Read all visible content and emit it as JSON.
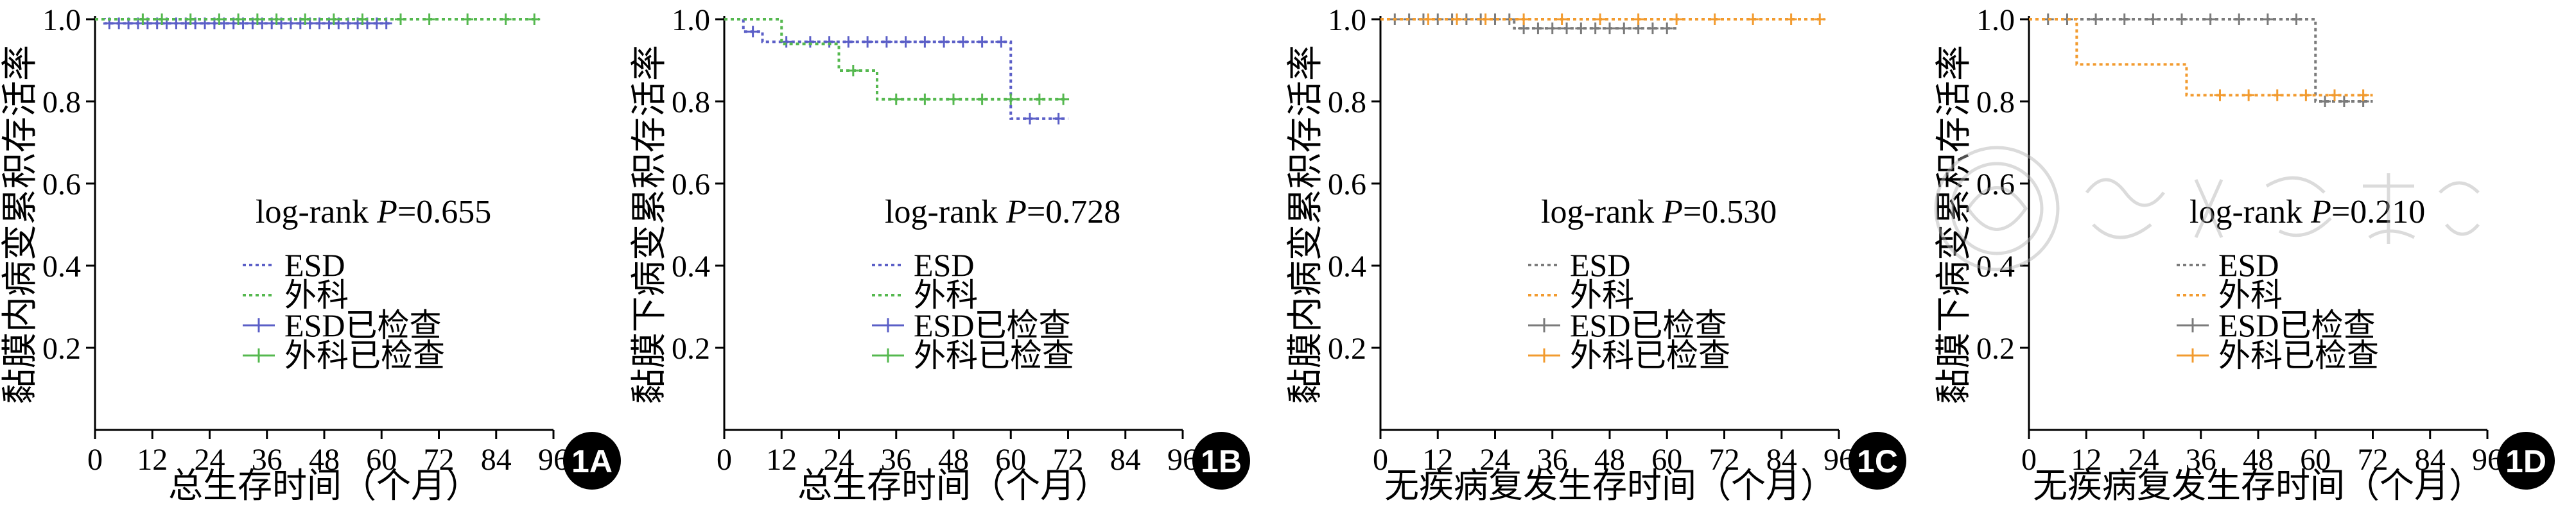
{
  "colors": {
    "blue": "#5b5fc7",
    "green": "#55b84f",
    "gray": "#7b7b7b",
    "orange": "#f29b2f",
    "axis": "#000000"
  },
  "chart_data": [
    {
      "type": "line",
      "panel_label": "1A",
      "ylabel": "黏膜内病变累积存活率",
      "xlabel": "总生存时间（个月）",
      "xticks": [
        0,
        12,
        24,
        36,
        48,
        60,
        72,
        84,
        96
      ],
      "yticks": [
        "0.2",
        "0.4",
        "0.6",
        "0.8",
        "1.0"
      ],
      "xlim": [
        0,
        96
      ],
      "ylim": [
        0,
        1.0
      ],
      "annotation_pre": "log-rank ",
      "annotation_p": "P",
      "annotation_post": "=0.655",
      "legend": [
        "ESD",
        "外科",
        "ESD已检查",
        "外科已检查"
      ],
      "series": [
        {
          "name": "ESD",
          "color": "blue",
          "steps": [
            [
              0,
              1.0
            ],
            [
              2,
              0.99
            ],
            [
              62,
              0.99
            ]
          ],
          "censor": [
            3,
            5,
            7,
            9,
            11,
            13,
            15,
            17,
            19,
            21,
            23,
            25,
            27,
            29,
            31,
            33,
            35,
            37,
            39,
            41,
            43,
            45,
            47,
            49,
            51,
            53,
            55,
            57,
            59,
            61
          ]
        },
        {
          "name": "外科",
          "color": "green",
          "steps": [
            [
              0,
              1.0
            ],
            [
              93,
              1.0
            ]
          ],
          "censor": [
            10,
            14,
            20,
            26,
            30,
            34,
            38,
            44,
            50,
            56,
            64,
            70,
            78,
            86,
            92
          ]
        }
      ]
    },
    {
      "type": "line",
      "panel_label": "1B",
      "ylabel": "黏膜下病变累积存活率",
      "xlabel": "总生存时间（个月）",
      "xticks": [
        0,
        12,
        24,
        36,
        48,
        60,
        72,
        84,
        96
      ],
      "yticks": [
        "0.2",
        "0.4",
        "0.6",
        "0.8",
        "1.0"
      ],
      "xlim": [
        0,
        96
      ],
      "ylim": [
        0,
        1.0
      ],
      "annotation_pre": "log-rank ",
      "annotation_p": "P",
      "annotation_post": "=0.728",
      "legend": [
        "ESD",
        "外科",
        "ESD已检查",
        "外科已检查"
      ],
      "series": [
        {
          "name": "ESD",
          "color": "blue",
          "steps": [
            [
              0,
              1.0
            ],
            [
              4,
              0.97
            ],
            [
              8,
              0.945
            ],
            [
              60,
              0.945
            ],
            [
              60,
              0.758
            ],
            [
              72,
              0.758
            ]
          ],
          "censor": [
            6,
            13,
            18,
            22,
            26,
            30,
            34,
            38,
            42,
            46,
            50,
            54,
            58,
            64,
            70
          ]
        },
        {
          "name": "外科",
          "color": "green",
          "steps": [
            [
              0,
              1.0
            ],
            [
              12,
              1.0
            ],
            [
              12,
              0.94
            ],
            [
              24,
              0.94
            ],
            [
              24,
              0.875
            ],
            [
              32,
              0.875
            ],
            [
              32,
              0.805
            ],
            [
              72,
              0.805
            ]
          ],
          "censor": [
            27,
            36,
            42,
            48,
            54,
            60,
            66,
            71
          ]
        }
      ]
    },
    {
      "type": "line",
      "panel_label": "1C",
      "ylabel": "黏膜内病变累积存活率",
      "xlabel": "无疾病复发生存时间（个月）",
      "xticks": [
        0,
        12,
        24,
        36,
        48,
        60,
        72,
        84,
        96
      ],
      "yticks": [
        "0.2",
        "0.4",
        "0.6",
        "0.8",
        "1.0"
      ],
      "xlim": [
        0,
        96
      ],
      "ylim": [
        0,
        1.0
      ],
      "annotation_pre": "log-rank ",
      "annotation_p": "P",
      "annotation_post": "=0.530",
      "legend": [
        "ESD",
        "外科",
        "ESD已检查",
        "外科已检查"
      ],
      "series": [
        {
          "name": "ESD",
          "color": "gray",
          "steps": [
            [
              0,
              1.0
            ],
            [
              28,
              1.0
            ],
            [
              28,
              0.978
            ],
            [
              62,
              0.978
            ]
          ],
          "censor": [
            3,
            6,
            9,
            12,
            15,
            18,
            21,
            24,
            27,
            30,
            33,
            36,
            39,
            42,
            45,
            48,
            51,
            54,
            57,
            60
          ]
        },
        {
          "name": "外科",
          "color": "orange",
          "steps": [
            [
              0,
              1.0
            ],
            [
              93,
              1.0
            ]
          ],
          "censor": [
            10,
            16,
            22,
            30,
            38,
            46,
            54,
            62,
            70,
            78,
            86,
            92
          ]
        }
      ]
    },
    {
      "type": "line",
      "panel_label": "1D",
      "ylabel": "黏膜下病变累积存活率",
      "xlabel": "无疾病复发生存时间（个月）",
      "xticks": [
        0,
        12,
        24,
        36,
        48,
        60,
        72,
        84,
        96
      ],
      "yticks": [
        "0.2",
        "0.4",
        "0.6",
        "0.8",
        "1.0"
      ],
      "xlim": [
        0,
        96
      ],
      "ylim": [
        0,
        1.0
      ],
      "annotation_pre": "log-rank ",
      "annotation_p": "P",
      "annotation_post": "=0.210",
      "legend": [
        "ESD",
        "外科",
        "ESD已检查",
        "外科已检查"
      ],
      "series": [
        {
          "name": "ESD",
          "color": "gray",
          "steps": [
            [
              0,
              1.0
            ],
            [
              60,
              1.0
            ],
            [
              60,
              0.8
            ],
            [
              72,
              0.8
            ]
          ],
          "censor": [
            4,
            8,
            14,
            20,
            26,
            32,
            38,
            44,
            50,
            56,
            62,
            66,
            70
          ]
        },
        {
          "name": "外科",
          "color": "orange",
          "steps": [
            [
              0,
              1.0
            ],
            [
              10,
              1.0
            ],
            [
              10,
              0.89
            ],
            [
              33,
              0.89
            ],
            [
              33,
              0.815
            ],
            [
              72,
              0.815
            ]
          ],
          "censor": [
            40,
            46,
            52,
            58,
            64,
            70
          ]
        }
      ]
    }
  ],
  "watermark": "中华医学会"
}
